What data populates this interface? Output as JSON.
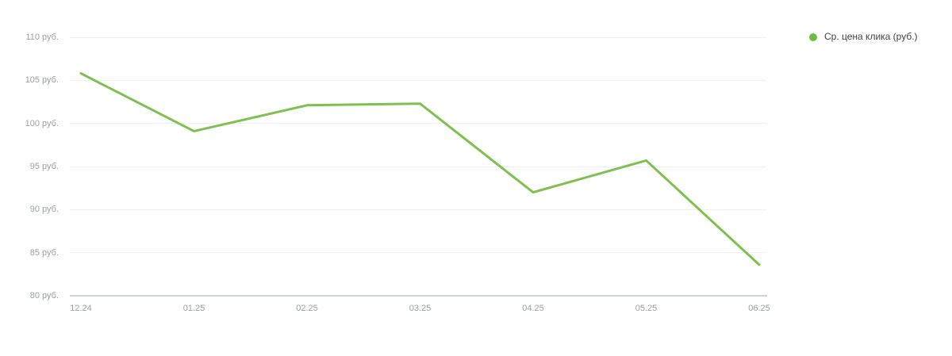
{
  "chart_data": {
    "type": "line",
    "title": "",
    "xlabel": "",
    "ylabel": "",
    "categories": [
      "12.24",
      "01.25",
      "02.25",
      "03.25",
      "04.25",
      "05.25",
      "06.25"
    ],
    "series": [
      {
        "name": "Ср. цена клика (руб.)",
        "color": "#7ec150",
        "dot_color": "#6abd42",
        "values": [
          105.8,
          99.1,
          102.1,
          102.3,
          92.0,
          95.7,
          83.6
        ]
      }
    ],
    "yticks": [
      {
        "value": 110,
        "label": "110 руб."
      },
      {
        "value": 105,
        "label": "105 руб."
      },
      {
        "value": 100,
        "label": "100 руб."
      },
      {
        "value": 95,
        "label": "95 руб."
      },
      {
        "value": 90,
        "label": "90 руб."
      },
      {
        "value": 85,
        "label": "85 руб."
      },
      {
        "value": 80,
        "label": "80 руб."
      }
    ],
    "ylim": [
      80,
      110
    ],
    "grid": true,
    "legend_position": "top-right",
    "colors": {
      "gridline": "#eef0f2",
      "axis_line": "#ccd3d9",
      "tick_text": "#99a1a8",
      "legend_text": "#3f4345",
      "background": "#ffffff"
    }
  }
}
